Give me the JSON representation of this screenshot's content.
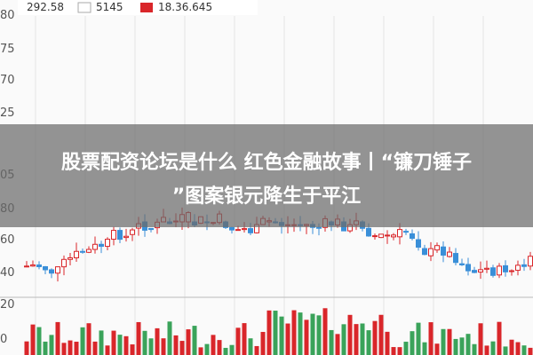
{
  "header": {
    "items": [
      "292.58",
      "5145",
      "18.36.645"
    ]
  },
  "axis": {
    "labels": [
      "80",
      "75",
      "70",
      "25",
      "05",
      "80",
      "60",
      "40",
      "20",
      "0"
    ]
  },
  "banner": {
    "lines": [
      "股票配资论坛是什么 红色金融故事丨“镰刀锤子",
      "”图案银元降生于平江"
    ]
  }
}
